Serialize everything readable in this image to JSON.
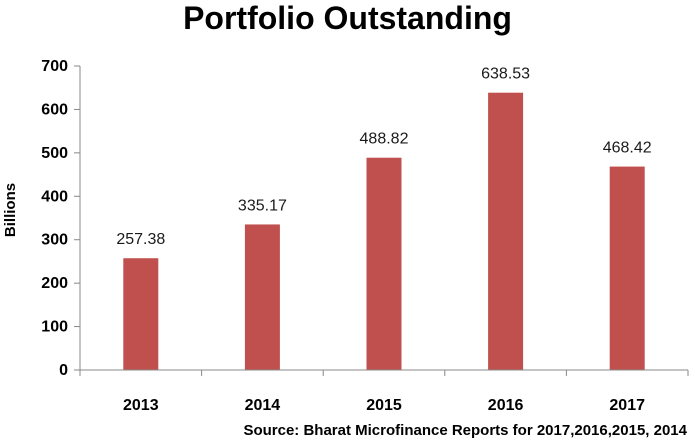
{
  "chart_data": {
    "type": "bar",
    "title": "Portfolio Outstanding",
    "xlabel": "",
    "ylabel": "Billions",
    "categories": [
      "2013",
      "2014",
      "2015",
      "2016",
      "2017"
    ],
    "values": [
      257.38,
      335.17,
      488.82,
      638.53,
      468.42
    ],
    "value_labels": [
      "257.38",
      "335.17",
      "488.82",
      "638.53",
      "468.42"
    ],
    "ylim": [
      0,
      700
    ],
    "yticks": [
      0,
      100,
      200,
      300,
      400,
      500,
      600,
      700
    ],
    "grid": false,
    "legend": "none",
    "bar_color": "#c0504d"
  },
  "source": "Source: Bharat Microfinance Reports for 2017,2016,2015, 2014"
}
